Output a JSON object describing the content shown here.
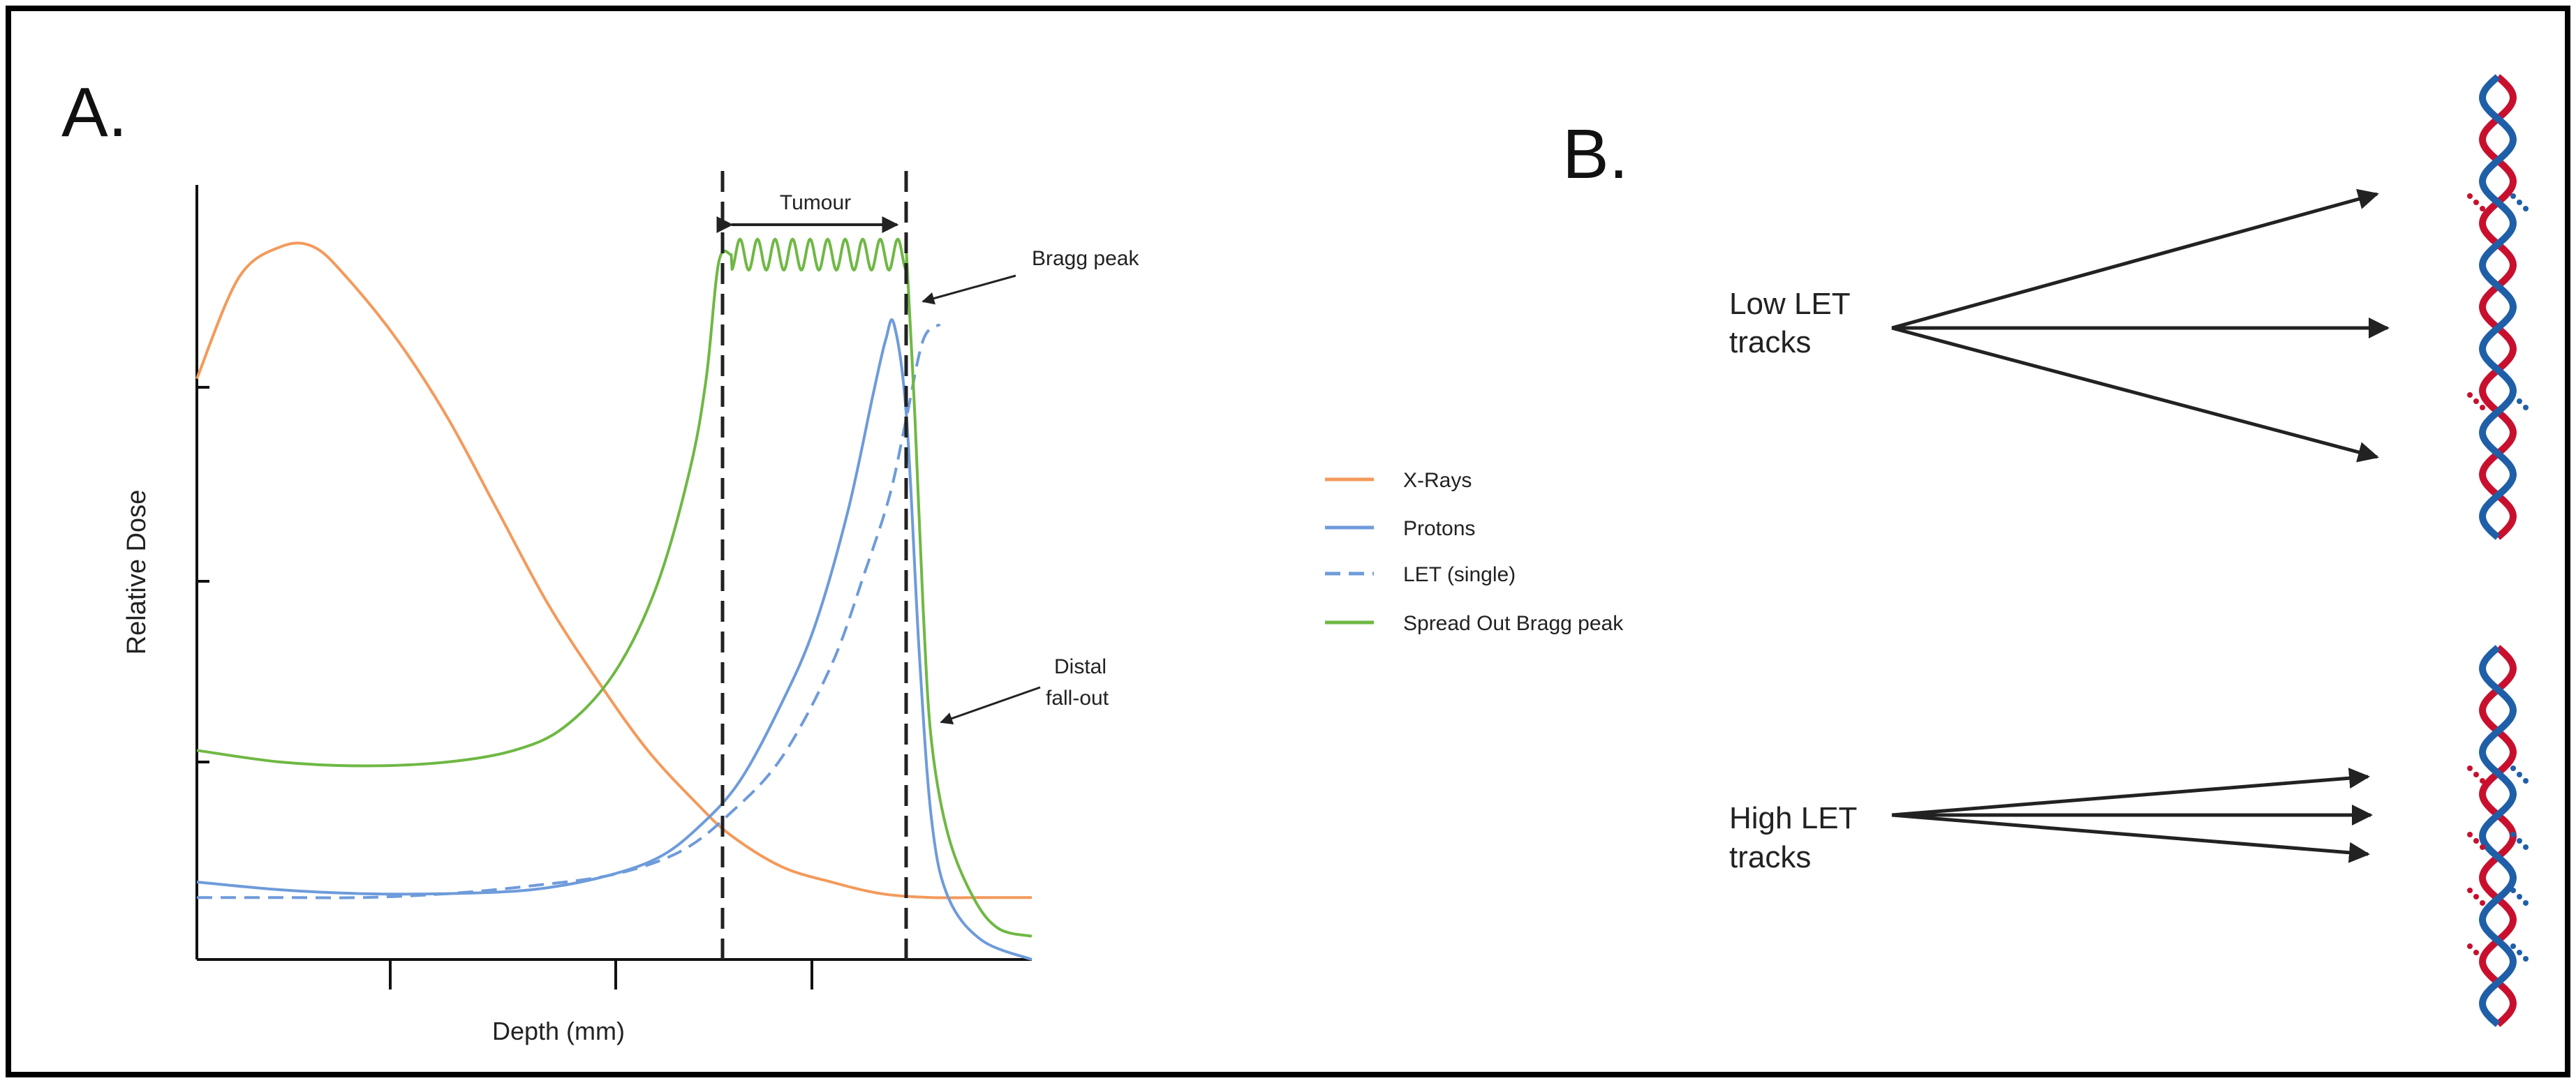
{
  "panel_a": {
    "label": "A.",
    "xlabel": "Depth (mm)",
    "ylabel": "Relative Dose",
    "tumour_label": "Tumour",
    "annotations": {
      "bragg_peak": "Bragg peak",
      "distal_1": "Distal",
      "distal_2": "fall-out"
    }
  },
  "legend": {
    "xrays": "X-Rays",
    "protons": "Protons",
    "let": "LET (single)",
    "sobp": "Spread Out Bragg peak"
  },
  "panel_b": {
    "label": "B.",
    "low_let_1": "Low LET",
    "low_let_2": "tracks",
    "high_let_1": "High LET",
    "high_let_2": "tracks"
  },
  "colors": {
    "xrays": "#F39A5B",
    "protons": "#6E9BDA",
    "sobp": "#6FB844",
    "dna_red": "#C8102E",
    "dna_blue": "#1F5FA8",
    "frame": "#000000"
  },
  "chart_data": {
    "type": "line",
    "xlabel": "Depth (mm)",
    "ylabel": "Relative Dose",
    "xlim": [
      0,
      100
    ],
    "ylim": [
      0,
      100
    ],
    "tumour_region": [
      63,
      85
    ],
    "series": [
      {
        "name": "X-Rays",
        "style": "solid",
        "color": "#F39A5B",
        "x": [
          0,
          5,
          10,
          14,
          18,
          24,
          30,
          36,
          42,
          48,
          54,
          60,
          64,
          70,
          76,
          82,
          88,
          94,
          100
        ],
        "y": [
          75,
          88,
          92,
          92,
          88,
          80,
          70,
          58,
          46,
          36,
          27,
          20,
          16,
          12,
          10,
          8.5,
          8,
          8,
          8
        ]
      },
      {
        "name": "Protons",
        "style": "solid",
        "color": "#6E9BDA",
        "x": [
          0,
          10,
          20,
          30,
          40,
          48,
          55,
          60,
          65,
          70,
          74,
          78,
          81,
          82.5,
          83.5,
          85,
          86.5,
          88,
          90,
          94,
          100
        ],
        "y": [
          10,
          9,
          8.5,
          8.5,
          9,
          10.5,
          13,
          17,
          23,
          33,
          43,
          58,
          73,
          80,
          82,
          70,
          40,
          18,
          8,
          2.5,
          0
        ]
      },
      {
        "name": "LET (single)",
        "style": "dashed",
        "color": "#6E9BDA",
        "x": [
          0,
          10,
          20,
          30,
          40,
          50,
          58,
          64,
          70,
          76,
          80,
          83,
          85,
          87,
          89
        ],
        "y": [
          8,
          8,
          8,
          8.5,
          9.5,
          11,
          14,
          19,
          26,
          38,
          50,
          60,
          70,
          80,
          82
        ]
      },
      {
        "name": "Spread Out Bragg peak",
        "style": "solid",
        "color": "#6FB844",
        "x": [
          0,
          10,
          20,
          30,
          38,
          44,
          50,
          55,
          59,
          61,
          62.5,
          64,
          85,
          86,
          87,
          88,
          90,
          93,
          96,
          100
        ],
        "y": [
          27,
          25.5,
          25,
          25.5,
          27,
          30,
          37,
          48,
          63,
          75,
          90,
          91,
          91,
          70,
          45,
          28,
          16,
          8,
          4,
          3
        ]
      }
    ],
    "sobp_ripple": {
      "x_range": [
        64,
        85
      ],
      "y_center": 91,
      "amplitude": 2,
      "cycles": 10
    }
  }
}
